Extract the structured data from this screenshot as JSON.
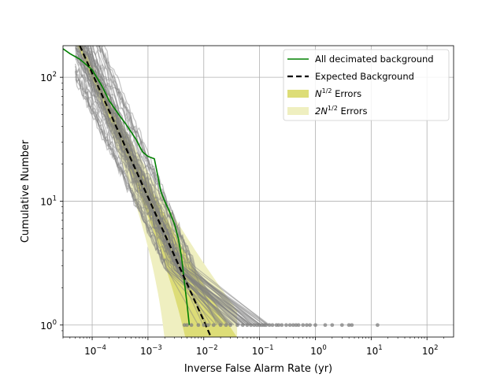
{
  "chart_data": {
    "type": "line",
    "xlabel": "Inverse False Alarm Rate (yr)",
    "ylabel": "Cumulative Number",
    "xscale": "log",
    "yscale": "log",
    "xlim": [
      3e-05,
      300
    ],
    "ylim": [
      0.8,
      180
    ],
    "x_ticks": [
      {
        "value": 0.0001,
        "base": "10",
        "exp": "−4"
      },
      {
        "value": 0.001,
        "base": "10",
        "exp": "−3"
      },
      {
        "value": 0.01,
        "base": "10",
        "exp": "−2"
      },
      {
        "value": 0.1,
        "base": "10",
        "exp": "−1"
      },
      {
        "value": 1,
        "base": "10",
        "exp": "0"
      },
      {
        "value": 10,
        "base": "10",
        "exp": "1"
      },
      {
        "value": 100,
        "base": "10",
        "exp": "2"
      }
    ],
    "y_ticks": [
      {
        "value": 1,
        "base": "10",
        "exp": "0"
      },
      {
        "value": 10,
        "base": "10",
        "exp": "1"
      },
      {
        "value": 100,
        "base": "10",
        "exp": "2"
      }
    ],
    "grid": true,
    "legend_position": "top-right",
    "legend": [
      {
        "label": "All decimated background",
        "style": "line",
        "color": "#008000"
      },
      {
        "label": "Expected Background",
        "style": "dashed",
        "color": "#000000"
      },
      {
        "label_base": "N",
        "label_sup": "1/2",
        "label_rest": " Errors",
        "style": "patch",
        "color": "#dddd77"
      },
      {
        "label_base": "2N",
        "label_sup": "1/2",
        "label_rest": " Errors",
        "style": "patch",
        "color": "#efefc0"
      }
    ],
    "series": [
      {
        "name": "All decimated background",
        "color": "#008000",
        "points": [
          [
            3e-05,
            170
          ],
          [
            4e-05,
            155
          ],
          [
            6e-05,
            140
          ],
          [
            0.0001,
            115
          ],
          [
            0.00015,
            85
          ],
          [
            0.0002,
            65
          ],
          [
            0.0003,
            50
          ],
          [
            0.0004,
            42
          ],
          [
            0.0006,
            32
          ],
          [
            0.0008,
            25
          ],
          [
            0.001,
            23
          ],
          [
            0.0013,
            22
          ],
          [
            0.0015,
            16
          ],
          [
            0.0017,
            12
          ],
          [
            0.002,
            10
          ],
          [
            0.0025,
            8
          ],
          [
            0.003,
            6.5
          ],
          [
            0.0035,
            5
          ],
          [
            0.004,
            3.5
          ],
          [
            0.0045,
            2.2
          ],
          [
            0.005,
            1.5
          ],
          [
            0.0055,
            1
          ]
        ]
      },
      {
        "name": "Expected Background",
        "color": "#000000",
        "dashed": true,
        "points": [
          [
            6e-05,
            180
          ],
          [
            0.0001,
            108
          ],
          [
            0.001,
            10.8
          ],
          [
            0.01,
            1.08
          ],
          [
            0.013,
            0.83
          ]
        ]
      }
    ],
    "decimated_realizations_color": "#808080",
    "decimated_realizations_count": 60,
    "loudest_event_x": [
      0.0045,
      0.005,
      0.006,
      0.008,
      0.01,
      0.012,
      0.015,
      0.02,
      0.025,
      0.03,
      0.04,
      0.05,
      0.06,
      0.07,
      0.08,
      0.09,
      0.1,
      0.11,
      0.12,
      0.13,
      0.15,
      0.17,
      0.2,
      0.22,
      0.25,
      0.3,
      0.35,
      0.4,
      0.45,
      0.5,
      0.6,
      0.7,
      0.8,
      1.0,
      1.5,
      2.0,
      3.0,
      4.0,
      4.5,
      13.0
    ],
    "error_band_1sigma_lower_reaches_zero_at": 0.005,
    "error_band_2sigma_lower_reaches_zero_at": 0.002
  }
}
